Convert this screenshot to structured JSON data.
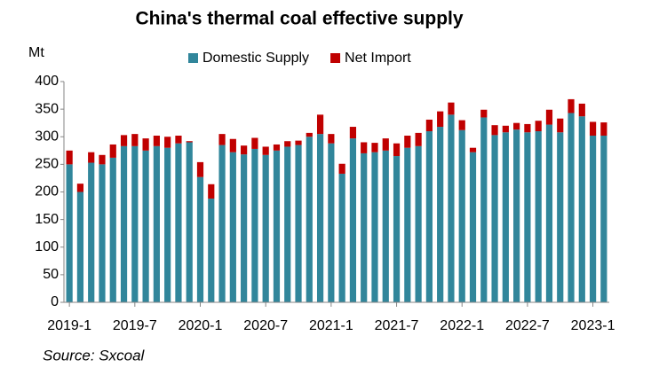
{
  "chart_data": {
    "type": "stacked_bar",
    "title": "China's thermal coal effective supply",
    "y_label": "Mt",
    "source": "Source: Sxcoal",
    "categories": [
      "2019-1",
      null,
      null,
      null,
      null,
      null,
      "2019-7",
      null,
      null,
      null,
      null,
      null,
      "2020-1",
      null,
      null,
      null,
      null,
      null,
      "2020-7",
      null,
      null,
      null,
      null,
      null,
      "2021-1",
      null,
      null,
      null,
      null,
      null,
      "2021-7",
      null,
      null,
      null,
      null,
      null,
      "2022-1",
      null,
      null,
      null,
      null,
      null,
      "2022-7",
      null,
      null,
      null,
      null,
      null,
      "2023-1",
      null
    ],
    "series": [
      {
        "name": "Domestic Supply",
        "color": "#31869b",
        "values": [
          250,
          200,
          253,
          250,
          262,
          283,
          283,
          275,
          283,
          280,
          288,
          290,
          227,
          188,
          285,
          272,
          268,
          278,
          267,
          275,
          282,
          285,
          300,
          305,
          288,
          233,
          297,
          270,
          272,
          275,
          265,
          280,
          283,
          310,
          318,
          340,
          312,
          272,
          335,
          303,
          308,
          313,
          308,
          310,
          322,
          308,
          343,
          337,
          302,
          302
        ]
      },
      {
        "name": "Net Import",
        "color": "#c00000",
        "values": [
          25,
          15,
          19,
          17,
          24,
          20,
          22,
          22,
          19,
          20,
          14,
          2,
          27,
          26,
          20,
          24,
          16,
          20,
          15,
          11,
          10,
          8,
          7,
          35,
          17,
          18,
          21,
          20,
          17,
          22,
          23,
          22,
          24,
          21,
          28,
          22,
          18,
          8,
          14,
          18,
          12,
          12,
          15,
          19,
          27,
          25,
          25,
          23,
          25,
          24
        ]
      }
    ],
    "ylim": [
      0,
      400
    ],
    "yticks": [
      0,
      50,
      100,
      150,
      200,
      250,
      300,
      350,
      400
    ],
    "grid": false,
    "legend": "top"
  }
}
